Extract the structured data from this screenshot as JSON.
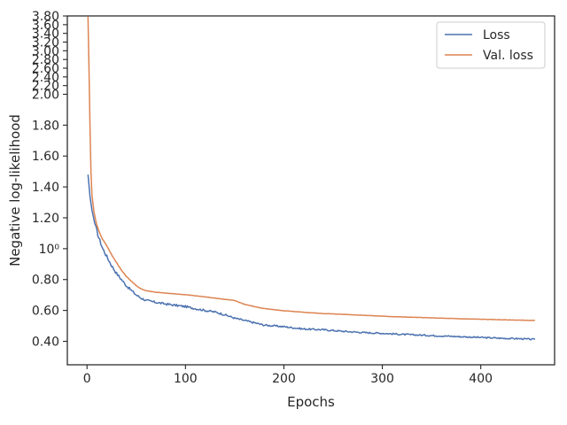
{
  "chart_data": {
    "type": "line",
    "xlabel": "Epochs",
    "ylabel": "Negative log-likelihood",
    "xlim": [
      -20,
      475
    ],
    "ylim": [
      0.22,
      3.85
    ],
    "y_scale": "log-like (expanded above ~2.0)",
    "grid": false,
    "legend_position": "top-right",
    "x_ticks": [
      0,
      100,
      200,
      300,
      400
    ],
    "x_tick_labels": [
      "0",
      "100",
      "200",
      "300",
      "400"
    ],
    "y_ticks": [
      0.4,
      0.6,
      0.8,
      1.0,
      1.2,
      1.4,
      1.6,
      1.8,
      2.0,
      2.2,
      2.4,
      2.6,
      2.8,
      3.0,
      3.2,
      3.4,
      3.6,
      3.8
    ],
    "y_tick_labels": [
      "0.40",
      "0.60",
      "0.80",
      "10⁰",
      "1.20",
      "1.40",
      "1.60",
      "1.80",
      "2.00",
      "2.20",
      "2.40",
      "2.60",
      "2.80",
      "3.00",
      "3.20",
      "3.40",
      "3.60",
      "3.80"
    ],
    "series": [
      {
        "name": "Loss",
        "color": "#4c72b0",
        "x": [
          1,
          3,
          5,
          8,
          12,
          16,
          20,
          25,
          30,
          35,
          40,
          45,
          50,
          55,
          60,
          70,
          80,
          90,
          100,
          110,
          120,
          130,
          140,
          150,
          160,
          170,
          180,
          200,
          220,
          240,
          260,
          280,
          300,
          320,
          340,
          360,
          380,
          400,
          420,
          440,
          455
        ],
        "y": [
          1.48,
          1.34,
          1.25,
          1.16,
          1.07,
          1.0,
          0.95,
          0.89,
          0.84,
          0.8,
          0.76,
          0.73,
          0.7,
          0.68,
          0.665,
          0.652,
          0.642,
          0.633,
          0.625,
          0.612,
          0.6,
          0.59,
          0.572,
          0.55,
          0.535,
          0.52,
          0.505,
          0.495,
          0.48,
          0.475,
          0.465,
          0.457,
          0.452,
          0.445,
          0.44,
          0.435,
          0.43,
          0.425,
          0.42,
          0.417,
          0.412
        ]
      },
      {
        "name": "Val. loss",
        "color": "#dd8452",
        "x": [
          1,
          2,
          3,
          4,
          5,
          7,
          10,
          15,
          20,
          25,
          30,
          35,
          40,
          45,
          50,
          55,
          60,
          70,
          80,
          90,
          100,
          110,
          120,
          130,
          140,
          150,
          160,
          170,
          180,
          200,
          220,
          240,
          260,
          280,
          300,
          320,
          340,
          360,
          380,
          400,
          420,
          440,
          455
        ],
        "y": [
          3.78,
          2.6,
          1.8,
          1.5,
          1.35,
          1.24,
          1.15,
          1.07,
          1.02,
          0.96,
          0.91,
          0.86,
          0.82,
          0.79,
          0.76,
          0.74,
          0.728,
          0.718,
          0.712,
          0.707,
          0.702,
          0.695,
          0.688,
          0.68,
          0.672,
          0.664,
          0.64,
          0.625,
          0.612,
          0.598,
          0.588,
          0.58,
          0.575,
          0.569,
          0.563,
          0.558,
          0.554,
          0.55,
          0.546,
          0.543,
          0.54,
          0.537,
          0.535
        ]
      }
    ]
  }
}
